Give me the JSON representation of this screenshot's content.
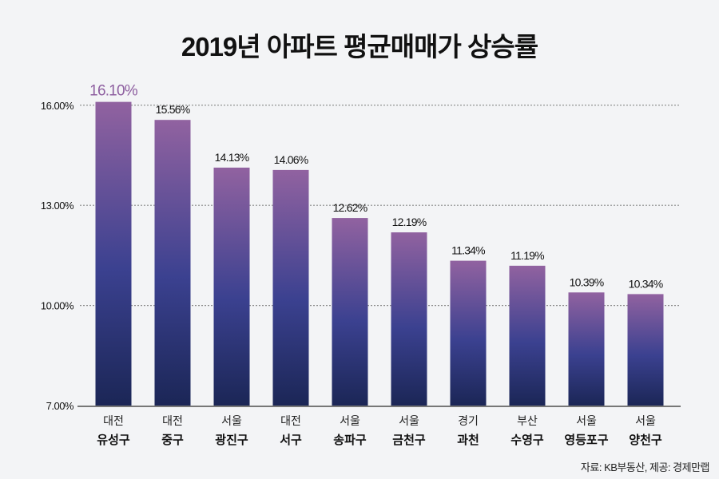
{
  "title": "2019년 아파트 평균매매가 상승률",
  "source": "자료: KB부동산, 제공: 경제만랩",
  "chart_data": {
    "type": "bar",
    "title": "2019년 아파트 평균매매가 상승률",
    "categories": [
      {
        "region": "대전",
        "district": "유성구"
      },
      {
        "region": "대전",
        "district": "중구"
      },
      {
        "region": "서울",
        "district": "광진구"
      },
      {
        "region": "대전",
        "district": "서구"
      },
      {
        "region": "서울",
        "district": "송파구"
      },
      {
        "region": "서울",
        "district": "금천구"
      },
      {
        "region": "경기",
        "district": "과천"
      },
      {
        "region": "부산",
        "district": "수영구"
      },
      {
        "region": "서울",
        "district": "영등포구"
      },
      {
        "region": "서울",
        "district": "양천구"
      }
    ],
    "values": [
      16.1,
      15.56,
      14.13,
      14.06,
      12.62,
      12.19,
      11.34,
      11.19,
      10.39,
      10.34
    ],
    "data_labels": [
      "16.10%",
      "15.56%",
      "14.13%",
      "14.06%",
      "12.62%",
      "12.19%",
      "11.34%",
      "11.19%",
      "10.39%",
      "10.34%"
    ],
    "ylim": [
      7,
      16.5
    ],
    "yticks": [
      7,
      10,
      13,
      16
    ],
    "ytick_labels": [
      "7.00%",
      "10.00%",
      "13.00%",
      "16.00%"
    ],
    "grid": true,
    "colors": {
      "bar_top": "#9162a0",
      "bar_mid": "#3b4190",
      "bar_bottom": "#1b2656",
      "highlight_label": "#8e5fa0",
      "label": "#111111",
      "grid": "#888888",
      "axis": "#777777"
    }
  }
}
